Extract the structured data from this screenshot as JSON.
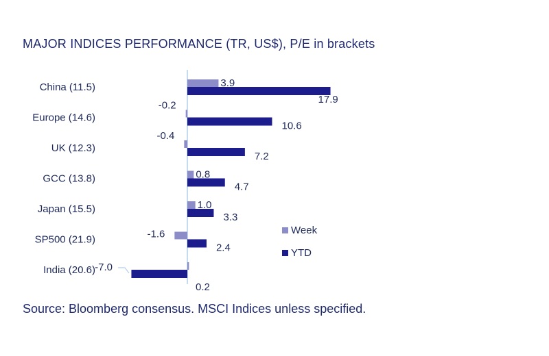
{
  "chart_data": {
    "type": "bar",
    "orientation": "horizontal",
    "title": "MAJOR INDICES PERFORMANCE (TR, US$), P/E in brackets",
    "categories": [
      "China (11.5)",
      "Europe (14.6)",
      "UK (12.3)",
      "GCC (13.8)",
      "Japan (15.5)",
      "SP500 (21.9)",
      "India (20.6)"
    ],
    "series": [
      {
        "name": "Week",
        "color": "#8c8cc8",
        "values": [
          3.9,
          -0.2,
          -0.4,
          0.8,
          1.0,
          -1.6,
          0.2
        ]
      },
      {
        "name": "YTD",
        "color": "#1c1c8c",
        "values": [
          17.9,
          10.6,
          7.2,
          4.7,
          3.3,
          2.4,
          -7.0
        ]
      }
    ],
    "value_labels": {
      "Week": [
        "3.9",
        "-0.2",
        "-0.4",
        "0.8",
        "1.0",
        "-1.6",
        "0.2"
      ],
      "YTD": [
        "17.9",
        "10.6",
        "7.2",
        "4.7",
        "3.3",
        "2.4",
        "-7.0"
      ]
    },
    "legend": [
      "Week",
      "YTD"
    ],
    "legend_position": "right",
    "grid": false,
    "xlim": [
      -7.0,
      17.9
    ]
  },
  "source": "Source: Bloomberg consensus. MSCI Indices unless specified."
}
